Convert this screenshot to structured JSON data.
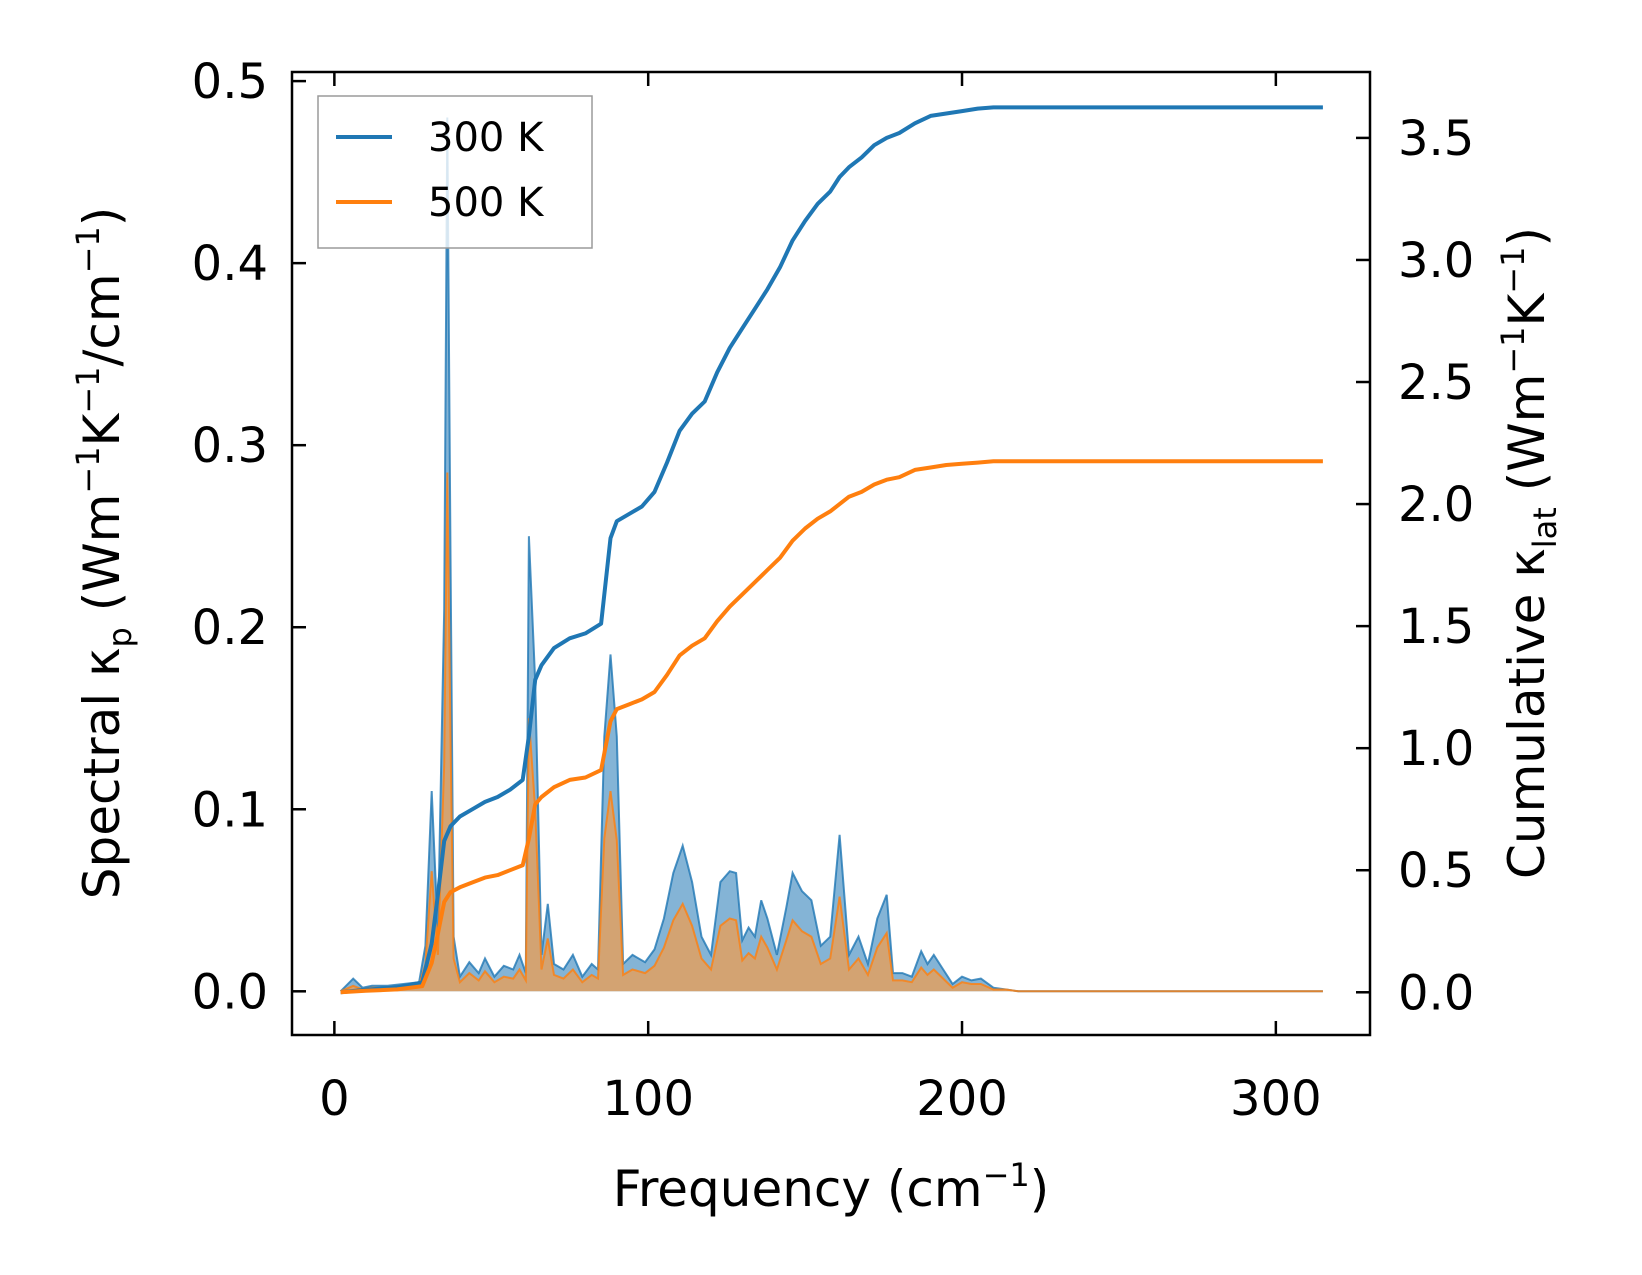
{
  "chart_data": {
    "type": "line",
    "x_axis": {
      "label_text": "Frequency (cm",
      "label_sup": "−1",
      "label_end": ")",
      "range": [
        -13.5,
        330
      ],
      "ticks": [
        0,
        100,
        200,
        300
      ],
      "tick_labels": [
        "0",
        "100",
        "200",
        "300"
      ]
    },
    "y_left": {
      "label_main": "Spectral κ",
      "label_sub": "p",
      "label_units": [
        {
          "t": " (Wm",
          "sup": false
        },
        {
          "t": "−1",
          "sup": true
        },
        {
          "t": "K",
          "sup": false
        },
        {
          "t": "−1",
          "sup": true
        },
        {
          "t": "/cm",
          "sup": false
        },
        {
          "t": "−1",
          "sup": true
        },
        {
          "t": ")",
          "sup": false
        }
      ],
      "range": [
        -0.024,
        0.505
      ],
      "ticks": [
        0.0,
        0.1,
        0.2,
        0.3,
        0.4,
        0.5
      ],
      "tick_labels": [
        "0.0",
        "0.1",
        "0.2",
        "0.3",
        "0.4",
        "0.5"
      ]
    },
    "y_right": {
      "label_main": "Cumulative κ",
      "label_sub": "lat",
      "label_units": [
        {
          "t": " (Wm",
          "sup": false
        },
        {
          "t": "−1",
          "sup": true
        },
        {
          "t": "K",
          "sup": false
        },
        {
          "t": "−1",
          "sup": true
        },
        {
          "t": ")",
          "sup": false
        }
      ],
      "range": [
        -0.175,
        3.77
      ],
      "ticks": [
        0.0,
        0.5,
        1.0,
        1.5,
        2.0,
        2.5,
        3.0,
        3.5
      ],
      "tick_labels": [
        "0.0",
        "0.5",
        "1.0",
        "1.5",
        "2.0",
        "2.5",
        "3.0",
        "3.5"
      ]
    },
    "legend": {
      "position": "top-left",
      "entries": [
        "300 K",
        "500 K"
      ]
    },
    "colors": {
      "300 K": "#1f77b4",
      "500 K": "#ff7f0e",
      "fill_300": "#1f77b4",
      "fill_500": "#e0a060"
    },
    "spectral_x": [
      2,
      6,
      9,
      12,
      17,
      22,
      27,
      29,
      31,
      33,
      35,
      36,
      37,
      38,
      40,
      43,
      46,
      48,
      51,
      54,
      57,
      59,
      61,
      62,
      64,
      66,
      68,
      70,
      73,
      76,
      79,
      82,
      84,
      86,
      88,
      90,
      92,
      95,
      99,
      102,
      105,
      108,
      111,
      114,
      117,
      120,
      123,
      126,
      128,
      130,
      132,
      134,
      136,
      138,
      141,
      144,
      146,
      149,
      152,
      155,
      158,
      161,
      164,
      167,
      170,
      173,
      176,
      178,
      181,
      184,
      187,
      189,
      191,
      194,
      197,
      200,
      203,
      206,
      210,
      214,
      218,
      230,
      260,
      290,
      315
    ],
    "series": [
      {
        "name": "300 K",
        "spectral": [
          0.0,
          0.007,
          0.002,
          0.003,
          0.003,
          0.004,
          0.005,
          0.025,
          0.11,
          0.032,
          0.21,
          0.48,
          0.24,
          0.03,
          0.008,
          0.016,
          0.01,
          0.018,
          0.008,
          0.014,
          0.012,
          0.02,
          0.01,
          0.25,
          0.17,
          0.02,
          0.048,
          0.015,
          0.012,
          0.02,
          0.008,
          0.015,
          0.012,
          0.14,
          0.185,
          0.14,
          0.015,
          0.02,
          0.016,
          0.023,
          0.04,
          0.065,
          0.08,
          0.06,
          0.03,
          0.02,
          0.06,
          0.066,
          0.065,
          0.028,
          0.035,
          0.03,
          0.05,
          0.04,
          0.02,
          0.046,
          0.065,
          0.055,
          0.05,
          0.025,
          0.03,
          0.086,
          0.02,
          0.03,
          0.015,
          0.04,
          0.053,
          0.01,
          0.01,
          0.008,
          0.022,
          0.015,
          0.02,
          0.012,
          0.004,
          0.008,
          0.006,
          0.007,
          0.002,
          0.001,
          0.0,
          0.0,
          0.0,
          0.0,
          0.0
        ],
        "cumulative_x": [
          2,
          10,
          20,
          28,
          31,
          33,
          35,
          37,
          40,
          44,
          48,
          52,
          56,
          60,
          62,
          64,
          66,
          70,
          75,
          80,
          85,
          88,
          90,
          94,
          98,
          102,
          106,
          110,
          114,
          118,
          122,
          126,
          130,
          134,
          138,
          142,
          146,
          150,
          154,
          158,
          161,
          164,
          168,
          172,
          176,
          180,
          185,
          190,
          195,
          200,
          205,
          210,
          215,
          250,
          315
        ],
        "cumulative": [
          0.0,
          0.01,
          0.02,
          0.04,
          0.2,
          0.4,
          0.62,
          0.68,
          0.72,
          0.75,
          0.78,
          0.8,
          0.83,
          0.87,
          1.05,
          1.28,
          1.34,
          1.41,
          1.45,
          1.47,
          1.51,
          1.86,
          1.93,
          1.96,
          1.99,
          2.05,
          2.17,
          2.3,
          2.37,
          2.42,
          2.54,
          2.64,
          2.72,
          2.8,
          2.88,
          2.97,
          3.08,
          3.16,
          3.23,
          3.28,
          3.34,
          3.38,
          3.42,
          3.47,
          3.5,
          3.52,
          3.56,
          3.59,
          3.6,
          3.61,
          3.62,
          3.625,
          3.625,
          3.625,
          3.625
        ]
      },
      {
        "name": "500 K",
        "spectral": [
          0.0,
          0.003,
          0.001,
          0.002,
          0.002,
          0.003,
          0.003,
          0.015,
          0.066,
          0.02,
          0.125,
          0.285,
          0.14,
          0.018,
          0.005,
          0.01,
          0.006,
          0.011,
          0.005,
          0.008,
          0.007,
          0.012,
          0.006,
          0.15,
          0.1,
          0.012,
          0.029,
          0.009,
          0.007,
          0.012,
          0.005,
          0.009,
          0.007,
          0.084,
          0.11,
          0.083,
          0.009,
          0.012,
          0.01,
          0.014,
          0.024,
          0.039,
          0.048,
          0.036,
          0.018,
          0.012,
          0.036,
          0.04,
          0.039,
          0.017,
          0.021,
          0.018,
          0.03,
          0.024,
          0.012,
          0.028,
          0.039,
          0.033,
          0.03,
          0.015,
          0.018,
          0.052,
          0.012,
          0.018,
          0.009,
          0.024,
          0.032,
          0.006,
          0.006,
          0.005,
          0.013,
          0.009,
          0.012,
          0.007,
          0.002,
          0.005,
          0.004,
          0.004,
          0.001,
          0.001,
          0.0,
          0.0,
          0.0,
          0.0,
          0.0
        ],
        "cumulative_x": [
          2,
          10,
          20,
          28,
          31,
          33,
          35,
          37,
          40,
          44,
          48,
          52,
          56,
          60,
          62,
          64,
          66,
          70,
          75,
          80,
          85,
          88,
          90,
          94,
          98,
          102,
          106,
          110,
          114,
          118,
          122,
          126,
          130,
          134,
          138,
          142,
          146,
          150,
          154,
          158,
          161,
          164,
          168,
          172,
          176,
          180,
          185,
          190,
          195,
          200,
          205,
          210,
          215,
          250,
          315
        ],
        "cumulative": [
          0.0,
          0.006,
          0.012,
          0.025,
          0.12,
          0.24,
          0.37,
          0.41,
          0.43,
          0.45,
          0.47,
          0.48,
          0.5,
          0.52,
          0.63,
          0.77,
          0.8,
          0.84,
          0.87,
          0.88,
          0.91,
          1.11,
          1.16,
          1.18,
          1.2,
          1.23,
          1.3,
          1.38,
          1.42,
          1.45,
          1.52,
          1.58,
          1.63,
          1.68,
          1.73,
          1.78,
          1.85,
          1.9,
          1.94,
          1.97,
          2.0,
          2.03,
          2.05,
          2.08,
          2.1,
          2.11,
          2.14,
          2.15,
          2.16,
          2.165,
          2.17,
          2.175,
          2.175,
          2.175,
          2.175
        ]
      }
    ]
  }
}
